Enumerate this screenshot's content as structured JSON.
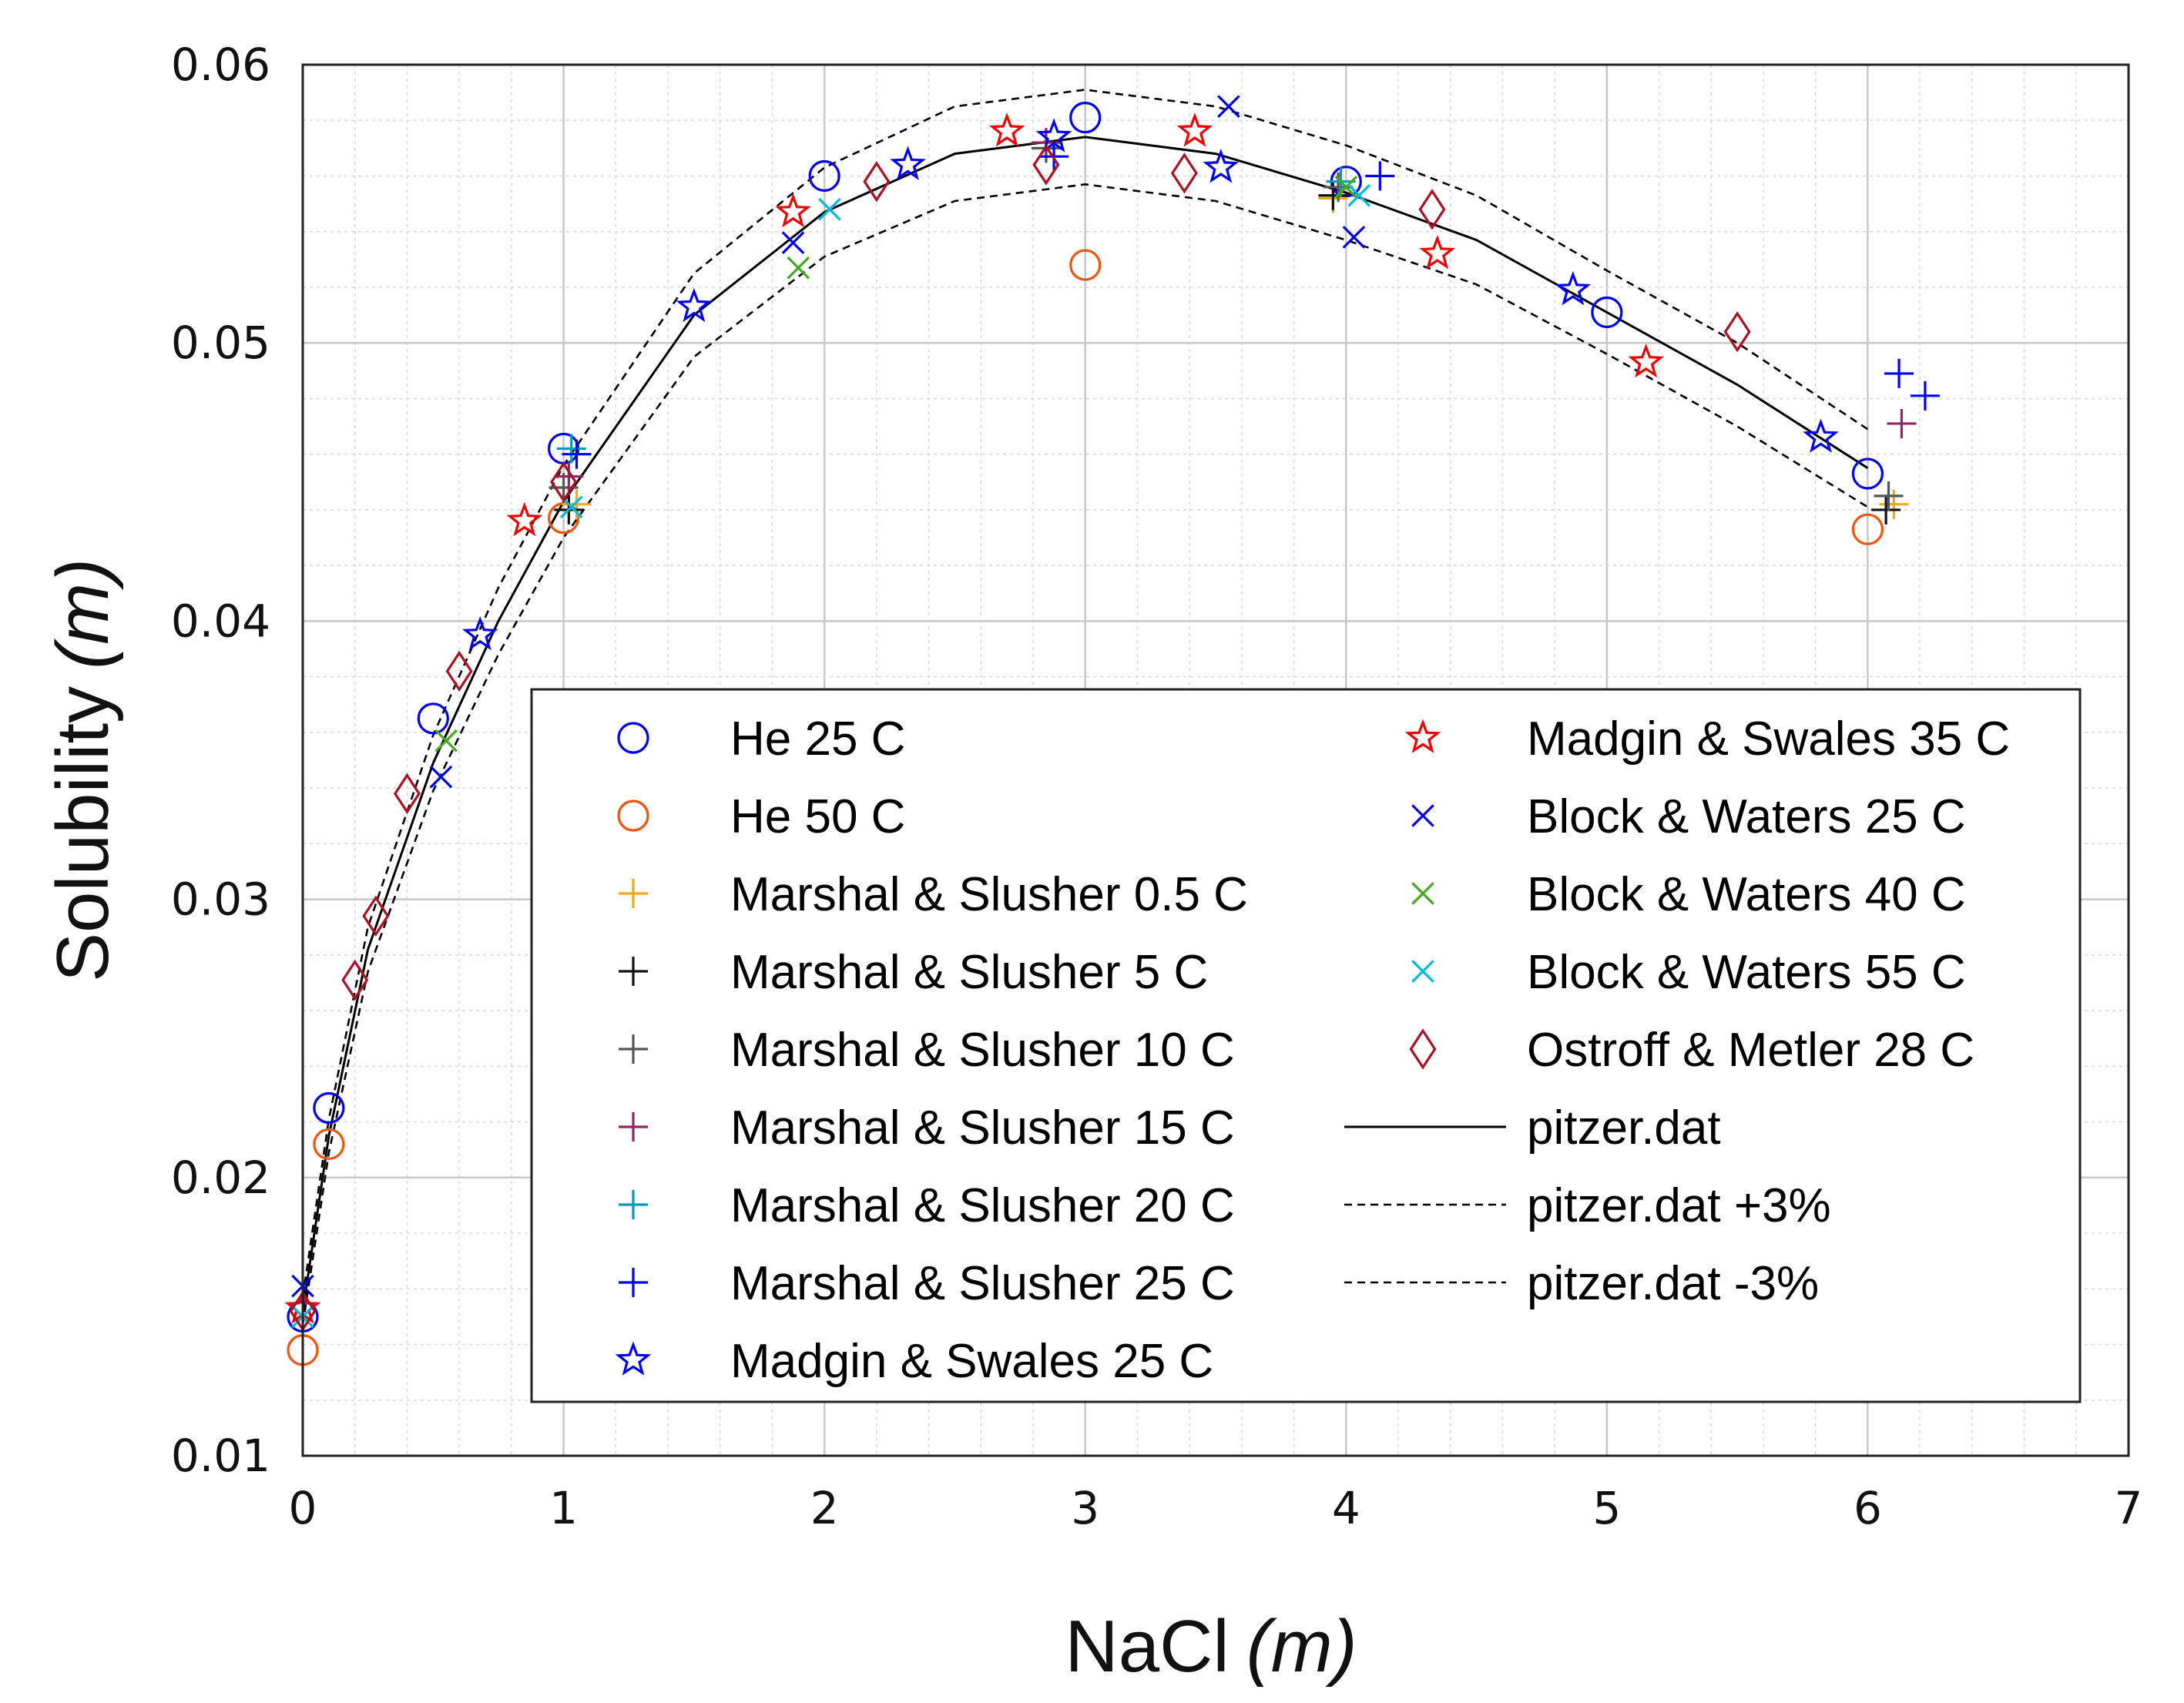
{
  "chart_data": {
    "type": "scatter",
    "title": "",
    "xlabel": "NaCl",
    "xlabel_unit": "(m)",
    "ylabel": "Solubility",
    "ylabel_unit": "(m)",
    "xlim": [
      0,
      7
    ],
    "ylim": [
      0.01,
      0.06
    ],
    "xticks": [
      0,
      1,
      2,
      3,
      4,
      5,
      6,
      7
    ],
    "yticks": [
      0.01,
      0.02,
      0.03,
      0.04,
      0.05,
      0.06
    ],
    "xtick_labels": [
      "0",
      "1",
      "2",
      "3",
      "4",
      "5",
      "6",
      "7"
    ],
    "ytick_labels": [
      "0.01",
      "0.02",
      "0.03",
      "0.04",
      "0.05",
      "0.06"
    ],
    "grid": true,
    "legend_position": "bottom-right",
    "series": [
      {
        "name": "He 25 C",
        "marker": "circle",
        "color": "#0000ee",
        "points": [
          [
            0,
            0.015
          ],
          [
            0.1,
            0.0225
          ],
          [
            0.5,
            0.0365
          ],
          [
            1,
            0.0462
          ],
          [
            2,
            0.056
          ],
          [
            3,
            0.0581
          ],
          [
            4,
            0.0558
          ],
          [
            5,
            0.0511
          ],
          [
            6,
            0.0453
          ]
        ]
      },
      {
        "name": "He 50 C",
        "marker": "circle",
        "color": "#ee5511",
        "points": [
          [
            0,
            0.0138
          ],
          [
            0.1,
            0.0212
          ],
          [
            1,
            0.0437
          ],
          [
            3,
            0.0528
          ],
          [
            6,
            0.0433
          ]
        ]
      },
      {
        "name": "Marshal & Slusher 0.5 C",
        "marker": "plus",
        "color": "#f0a818",
        "points": [
          [
            1.05,
            0.0442
          ],
          [
            3.95,
            0.0552
          ],
          [
            6.1,
            0.0442
          ]
        ]
      },
      {
        "name": "Marshal & Slusher 5 C",
        "marker": "plus",
        "color": "#111111",
        "points": [
          [
            1.02,
            0.044
          ],
          [
            3.95,
            0.0553
          ],
          [
            6.07,
            0.044
          ]
        ]
      },
      {
        "name": "Marshal & Slusher 10 C",
        "marker": "plus",
        "color": "#555555",
        "points": [
          [
            1.0,
            0.0448
          ],
          [
            2.85,
            0.057
          ],
          [
            3.97,
            0.0556
          ],
          [
            6.08,
            0.0445
          ]
        ]
      },
      {
        "name": "Marshal & Slusher 15 C",
        "marker": "plus",
        "color": "#992266",
        "points": [
          [
            1.02,
            0.0452
          ],
          [
            2.85,
            0.0572
          ],
          [
            6.13,
            0.0471
          ]
        ]
      },
      {
        "name": "Marshal & Slusher 20 C",
        "marker": "plus",
        "color": "#0099bb",
        "points": [
          [
            1.03,
            0.0462
          ],
          [
            3.98,
            0.0558
          ]
        ]
      },
      {
        "name": "Marshal & Slusher 25 C",
        "marker": "plus",
        "color": "#0000ee",
        "points": [
          [
            1.05,
            0.046
          ],
          [
            2.88,
            0.0567
          ],
          [
            4.13,
            0.056
          ],
          [
            6.12,
            0.0489
          ],
          [
            6.22,
            0.0481
          ]
        ]
      },
      {
        "name": "Madgin & Swales 25 C",
        "marker": "star",
        "color": "#0000ee",
        "points": [
          [
            0,
            0.0153
          ],
          [
            0.68,
            0.0395
          ],
          [
            1.5,
            0.0513
          ],
          [
            2.32,
            0.0564
          ],
          [
            2.88,
            0.0574
          ],
          [
            3.52,
            0.0563
          ],
          [
            4.87,
            0.0519
          ],
          [
            5.82,
            0.0466
          ]
        ]
      },
      {
        "name": "Madgin & Swales 35 C",
        "marker": "star",
        "color": "#ee0000",
        "points": [
          [
            0,
            0.0153
          ],
          [
            0.85,
            0.0436
          ],
          [
            1.88,
            0.0547
          ],
          [
            2.7,
            0.0576
          ],
          [
            3.42,
            0.0576
          ],
          [
            4.35,
            0.0532
          ],
          [
            5.15,
            0.0493
          ]
        ]
      },
      {
        "name": "Block & Waters 25 C",
        "marker": "x",
        "color": "#0000ee",
        "points": [
          [
            0,
            0.0161
          ],
          [
            0.53,
            0.0344
          ],
          [
            1.88,
            0.0536
          ],
          [
            3.55,
            0.0585
          ],
          [
            4.03,
            0.0538
          ]
        ]
      },
      {
        "name": "Block & Waters 40 C",
        "marker": "x",
        "color": "#44aa22",
        "points": [
          [
            0.55,
            0.0357
          ],
          [
            1.9,
            0.0527
          ],
          [
            4.0,
            0.0556
          ]
        ]
      },
      {
        "name": "Block & Waters 55 C",
        "marker": "x",
        "color": "#00bbdd",
        "points": [
          [
            0,
            0.015
          ],
          [
            1.03,
            0.0441
          ],
          [
            2.02,
            0.0548
          ],
          [
            4.05,
            0.0553
          ]
        ]
      },
      {
        "name": "Ostroff & Metler 28 C",
        "marker": "diamond",
        "color": "#aa1122",
        "points": [
          [
            0,
            0.0152
          ],
          [
            0.2,
            0.0271
          ],
          [
            0.28,
            0.0294
          ],
          [
            0.4,
            0.0338
          ],
          [
            0.6,
            0.0382
          ],
          [
            1.0,
            0.045
          ],
          [
            2.2,
            0.0558
          ],
          [
            2.85,
            0.0564
          ],
          [
            3.38,
            0.0561
          ],
          [
            4.33,
            0.0548
          ],
          [
            5.5,
            0.0504
          ]
        ]
      },
      {
        "name": "pitzer.dat",
        "marker": "none",
        "line": "solid",
        "color": "#000000",
        "points": [
          [
            0,
            0.0152
          ],
          [
            0.1,
            0.0215
          ],
          [
            0.25,
            0.0282
          ],
          [
            0.5,
            0.0349
          ],
          [
            0.75,
            0.04
          ],
          [
            1,
            0.0443
          ],
          [
            1.5,
            0.051
          ],
          [
            2,
            0.0547
          ],
          [
            2.5,
            0.0568
          ],
          [
            3,
            0.0574
          ],
          [
            3.5,
            0.0568
          ],
          [
            4,
            0.0554
          ],
          [
            4.5,
            0.0537
          ],
          [
            5,
            0.0511
          ],
          [
            5.5,
            0.0485
          ],
          [
            6,
            0.0455
          ]
        ]
      },
      {
        "name": "pitzer.dat +3%",
        "marker": "none",
        "line": "dashed",
        "color": "#000000",
        "points": [
          [
            0,
            0.0157
          ],
          [
            0.1,
            0.0221
          ],
          [
            0.25,
            0.029
          ],
          [
            0.5,
            0.0359
          ],
          [
            0.75,
            0.0412
          ],
          [
            1,
            0.0456
          ],
          [
            1.5,
            0.0525
          ],
          [
            2,
            0.0563
          ],
          [
            2.5,
            0.0585
          ],
          [
            3,
            0.0591
          ],
          [
            3.5,
            0.0585
          ],
          [
            4,
            0.0571
          ],
          [
            4.5,
            0.0553
          ],
          [
            5,
            0.0526
          ],
          [
            5.5,
            0.05
          ],
          [
            6,
            0.0469
          ]
        ]
      },
      {
        "name": "pitzer.dat -3%",
        "marker": "none",
        "line": "dashed",
        "color": "#000000",
        "points": [
          [
            0,
            0.0147
          ],
          [
            0.1,
            0.0209
          ],
          [
            0.25,
            0.0274
          ],
          [
            0.5,
            0.0339
          ],
          [
            0.75,
            0.0388
          ],
          [
            1,
            0.043
          ],
          [
            1.5,
            0.0495
          ],
          [
            2,
            0.0531
          ],
          [
            2.5,
            0.0551
          ],
          [
            3,
            0.0557
          ],
          [
            3.5,
            0.0551
          ],
          [
            4,
            0.0537
          ],
          [
            4.5,
            0.0521
          ],
          [
            5,
            0.0496
          ],
          [
            5.5,
            0.047
          ],
          [
            6,
            0.0441
          ]
        ]
      }
    ]
  }
}
